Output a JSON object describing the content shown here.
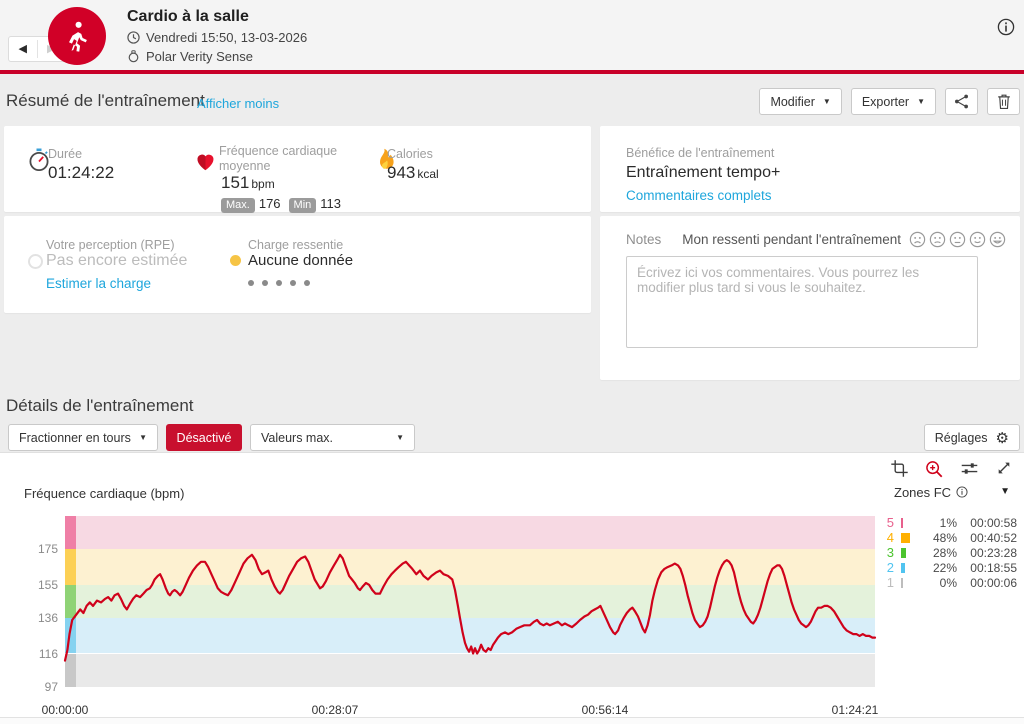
{
  "header": {
    "title": "Cardio à la salle",
    "datetime": "Vendredi 15:50, 13-03-2026",
    "device": "Polar Verity Sense"
  },
  "summary": {
    "title": "Résumé de l'entraînement",
    "toggle_link": "Afficher moins",
    "modify_button": "Modifier",
    "export_button": "Exporter"
  },
  "stats": {
    "duration": {
      "label": "Durée",
      "value": "01:24:22"
    },
    "heart_rate": {
      "label": "Fréquence cardiaque moyenne",
      "value": "151",
      "unit": "bpm",
      "max_label": "Max.",
      "max_value": "176",
      "min_label": "Min",
      "min_value": "113"
    },
    "calories": {
      "label": "Calories",
      "value": "943",
      "unit": "kcal"
    }
  },
  "benefit": {
    "label": "Bénéfice de l'entraînement",
    "value": "Entraînement tempo+",
    "link": "Commentaires complets"
  },
  "perception": {
    "label": "Votre perception (RPE)",
    "value": "Pas encore estimée",
    "link": "Estimer la charge"
  },
  "felt_load": {
    "label": "Charge ressentie",
    "value": "Aucune donnée"
  },
  "notes": {
    "label": "Notes",
    "prompt": "Mon ressenti pendant l'entraînement",
    "placeholder": "Écrivez ici vos commentaires. Vous pourrez les modifier plus tard si vous le souhaitez."
  },
  "details": {
    "title": "Détails de l'entraînement",
    "split_button": "Fractionner en tours",
    "state_button": "Désactivé",
    "values_select": "Valeurs max.",
    "settings_button": "Réglages"
  },
  "colors": {
    "brand_red": "#d10027",
    "bar_red": "#c80029",
    "button_red": "#c8102e",
    "link_blue": "#1ea6dc"
  },
  "chart_data": {
    "type": "line",
    "title": "Fréquence cardiaque (bpm)",
    "ylabel": "bpm",
    "ylim": [
      97,
      194
    ],
    "duration_sec": 5061,
    "line_color": "#d0021b",
    "grid": false,
    "legend_position": "right",
    "y_ticks": [
      175,
      155,
      136,
      116,
      97
    ],
    "x_ticks": [
      {
        "label": "00:00:00",
        "sec": 0
      },
      {
        "label": "00:28:07",
        "sec": 1687
      },
      {
        "label": "00:56:14",
        "sec": 3374
      },
      {
        "label": "01:24:21",
        "sec": 5061
      }
    ],
    "zones_panel": {
      "title": "Zones FC"
    },
    "zones": [
      {
        "zone": "5",
        "range": [
          175,
          194
        ],
        "pct": "1%",
        "time": "00:00:58",
        "color": "#e8608c",
        "band": "#f7d9e3",
        "strip": "#ef7fa6"
      },
      {
        "zone": "4",
        "range": [
          155,
          175
        ],
        "pct": "48%",
        "time": "00:40:52",
        "color": "#ffb000",
        "band": "#fdf1d1",
        "strip": "#fcd055"
      },
      {
        "zone": "3",
        "range": [
          136,
          155
        ],
        "pct": "28%",
        "time": "00:23:28",
        "color": "#4cc42e",
        "band": "#e4f2db",
        "strip": "#8fd376"
      },
      {
        "zone": "2",
        "range": [
          116,
          136
        ],
        "pct": "22%",
        "time": "00:18:55",
        "color": "#51c4f0",
        "band": "#d8eef9",
        "strip": "#85d2f0"
      },
      {
        "zone": "1",
        "range": [
          97,
          116
        ],
        "pct": "0%",
        "time": "00:00:06",
        "color": "#bdbdbd",
        "band": "#e9e9e9",
        "strip": "#c8c8c8"
      }
    ],
    "series": [
      [
        0,
        112
      ],
      [
        15,
        118
      ],
      [
        28,
        127
      ],
      [
        45,
        135
      ],
      [
        70,
        138
      ],
      [
        95,
        141
      ],
      [
        115,
        139
      ],
      [
        135,
        143
      ],
      [
        155,
        145
      ],
      [
        175,
        143
      ],
      [
        200,
        146
      ],
      [
        225,
        145
      ],
      [
        250,
        147
      ],
      [
        270,
        148
      ],
      [
        290,
        146
      ],
      [
        310,
        149
      ],
      [
        331,
        150
      ],
      [
        350,
        147
      ],
      [
        370,
        143
      ],
      [
        387,
        141
      ],
      [
        405,
        144
      ],
      [
        425,
        147
      ],
      [
        445,
        149
      ],
      [
        469,
        148
      ],
      [
        490,
        150
      ],
      [
        510,
        152
      ],
      [
        530,
        153
      ],
      [
        544,
        155
      ],
      [
        560,
        158
      ],
      [
        580,
        160
      ],
      [
        594,
        161
      ],
      [
        610,
        158
      ],
      [
        630,
        153
      ],
      [
        645,
        150
      ],
      [
        656,
        149
      ],
      [
        670,
        151
      ],
      [
        685,
        152
      ],
      [
        700,
        151
      ],
      [
        719,
        149
      ],
      [
        735,
        151
      ],
      [
        755,
        155
      ],
      [
        775,
        159
      ],
      [
        800,
        163
      ],
      [
        825,
        166
      ],
      [
        850,
        168
      ],
      [
        875,
        168
      ],
      [
        895,
        165
      ],
      [
        915,
        161
      ],
      [
        935,
        157
      ],
      [
        955,
        153
      ],
      [
        975,
        151
      ],
      [
        995,
        150
      ],
      [
        1018,
        149
      ],
      [
        1040,
        152
      ],
      [
        1065,
        157
      ],
      [
        1090,
        162
      ],
      [
        1115,
        167
      ],
      [
        1140,
        170
      ],
      [
        1168,
        172
      ],
      [
        1190,
        169
      ],
      [
        1210,
        164
      ],
      [
        1231,
        161
      ],
      [
        1252,
        162
      ],
      [
        1270,
        163
      ],
      [
        1290,
        158
      ],
      [
        1310,
        154
      ],
      [
        1330,
        151
      ],
      [
        1343,
        150
      ],
      [
        1360,
        152
      ],
      [
        1380,
        156
      ],
      [
        1400,
        160
      ],
      [
        1425,
        164
      ],
      [
        1450,
        168
      ],
      [
        1475,
        170
      ],
      [
        1500,
        171
      ],
      [
        1520,
        168
      ],
      [
        1540,
        163
      ],
      [
        1560,
        158
      ],
      [
        1580,
        155
      ],
      [
        1593,
        153
      ],
      [
        1610,
        154
      ],
      [
        1630,
        157
      ],
      [
        1655,
        162
      ],
      [
        1680,
        166
      ],
      [
        1700,
        169
      ],
      [
        1718,
        172
      ],
      [
        1735,
        170
      ],
      [
        1755,
        165
      ],
      [
        1775,
        160
      ],
      [
        1793,
        158
      ],
      [
        1810,
        156
      ],
      [
        1830,
        153
      ],
      [
        1843,
        152
      ],
      [
        1860,
        154
      ],
      [
        1880,
        156
      ],
      [
        1900,
        155
      ],
      [
        1920,
        152
      ],
      [
        1940,
        150
      ],
      [
        1968,
        150
      ],
      [
        1990,
        154
      ],
      [
        2015,
        158
      ],
      [
        2040,
        161
      ],
      [
        2062,
        163
      ],
      [
        2085,
        165
      ],
      [
        2110,
        167
      ],
      [
        2130,
        168
      ],
      [
        2150,
        166
      ],
      [
        2170,
        164
      ],
      [
        2195,
        161
      ],
      [
        2218,
        163
      ],
      [
        2240,
        160
      ],
      [
        2268,
        158
      ],
      [
        2290,
        160
      ],
      [
        2320,
        162
      ],
      [
        2343,
        163
      ],
      [
        2365,
        161
      ],
      [
        2393,
        160
      ],
      [
        2420,
        158
      ],
      [
        2437,
        152
      ],
      [
        2455,
        143
      ],
      [
        2468,
        136
      ],
      [
        2484,
        128
      ],
      [
        2499,
        122
      ],
      [
        2512,
        119
      ],
      [
        2525,
        117
      ],
      [
        2538,
        120
      ],
      [
        2550,
        116
      ],
      [
        2562,
        119
      ],
      [
        2575,
        116
      ],
      [
        2588,
        118
      ],
      [
        2600,
        121
      ],
      [
        2615,
        118
      ],
      [
        2630,
        117
      ],
      [
        2645,
        119
      ],
      [
        2660,
        118
      ],
      [
        2675,
        121
      ],
      [
        2690,
        123
      ],
      [
        2705,
        125
      ],
      [
        2725,
        127
      ],
      [
        2749,
        128
      ],
      [
        2770,
        127
      ],
      [
        2793,
        128
      ],
      [
        2820,
        130
      ],
      [
        2843,
        131
      ],
      [
        2870,
        132
      ],
      [
        2905,
        132
      ],
      [
        2930,
        134
      ],
      [
        2950,
        135
      ],
      [
        2968,
        133
      ],
      [
        2990,
        132
      ],
      [
        3010,
        133
      ],
      [
        3030,
        132
      ],
      [
        3055,
        133
      ],
      [
        3080,
        134
      ],
      [
        3105,
        132
      ],
      [
        3124,
        133
      ],
      [
        3145,
        132
      ],
      [
        3168,
        131
      ],
      [
        3195,
        133
      ],
      [
        3218,
        135
      ],
      [
        3245,
        137
      ],
      [
        3268,
        138
      ],
      [
        3290,
        140
      ],
      [
        3311,
        141
      ],
      [
        3330,
        142
      ],
      [
        3345,
        143
      ],
      [
        3360,
        140
      ],
      [
        3380,
        136
      ],
      [
        3405,
        131
      ],
      [
        3425,
        128
      ],
      [
        3437,
        127
      ],
      [
        3455,
        129
      ],
      [
        3468,
        132
      ],
      [
        3490,
        136
      ],
      [
        3510,
        139
      ],
      [
        3530,
        141
      ],
      [
        3545,
        142
      ],
      [
        3561,
        140
      ],
      [
        3580,
        137
      ],
      [
        3593,
        134
      ],
      [
        3610,
        130
      ],
      [
        3624,
        128
      ],
      [
        3640,
        132
      ],
      [
        3655,
        138
      ],
      [
        3670,
        146
      ],
      [
        3686,
        152
      ],
      [
        3705,
        158
      ],
      [
        3725,
        162
      ],
      [
        3745,
        164
      ],
      [
        3765,
        165
      ],
      [
        3790,
        166
      ],
      [
        3810,
        167
      ],
      [
        3830,
        166
      ],
      [
        3845,
        164
      ],
      [
        3860,
        160
      ],
      [
        3875,
        155
      ],
      [
        3890,
        149
      ],
      [
        3905,
        144
      ],
      [
        3920,
        139
      ],
      [
        3936,
        135
      ],
      [
        3950,
        133
      ],
      [
        3967,
        131
      ],
      [
        3985,
        132
      ],
      [
        4000,
        134
      ],
      [
        4015,
        137
      ],
      [
        4030,
        142
      ],
      [
        4045,
        148
      ],
      [
        4060,
        154
      ],
      [
        4075,
        159
      ],
      [
        4090,
        163
      ],
      [
        4105,
        166
      ],
      [
        4120,
        168
      ],
      [
        4135,
        169
      ],
      [
        4150,
        168
      ],
      [
        4165,
        166
      ],
      [
        4180,
        162
      ],
      [
        4195,
        156
      ],
      [
        4210,
        150
      ],
      [
        4225,
        145
      ],
      [
        4240,
        141
      ],
      [
        4255,
        138
      ],
      [
        4270,
        136
      ],
      [
        4285,
        134
      ],
      [
        4300,
        133
      ],
      [
        4315,
        135
      ],
      [
        4330,
        138
      ],
      [
        4345,
        142
      ],
      [
        4360,
        147
      ],
      [
        4375,
        152
      ],
      [
        4390,
        157
      ],
      [
        4405,
        161
      ],
      [
        4420,
        164
      ],
      [
        4435,
        165
      ],
      [
        4450,
        166
      ],
      [
        4465,
        166
      ],
      [
        4480,
        164
      ],
      [
        4495,
        160
      ],
      [
        4510,
        155
      ],
      [
        4525,
        150
      ],
      [
        4540,
        145
      ],
      [
        4555,
        141
      ],
      [
        4570,
        138
      ],
      [
        4585,
        135
      ],
      [
        4600,
        133
      ],
      [
        4615,
        132
      ],
      [
        4630,
        131
      ],
      [
        4645,
        132
      ],
      [
        4660,
        134
      ],
      [
        4675,
        137
      ],
      [
        4690,
        140
      ],
      [
        4705,
        142
      ],
      [
        4725,
        142
      ],
      [
        4745,
        143
      ],
      [
        4765,
        143
      ],
      [
        4785,
        142
      ],
      [
        4805,
        140
      ],
      [
        4825,
        137
      ],
      [
        4845,
        134
      ],
      [
        4865,
        131
      ],
      [
        4885,
        129
      ],
      [
        4905,
        128
      ],
      [
        4925,
        127
      ],
      [
        4945,
        127
      ],
      [
        4965,
        126
      ],
      [
        4985,
        127
      ],
      [
        5005,
        126
      ],
      [
        5025,
        126
      ],
      [
        5045,
        125
      ],
      [
        5061,
        125
      ]
    ]
  }
}
